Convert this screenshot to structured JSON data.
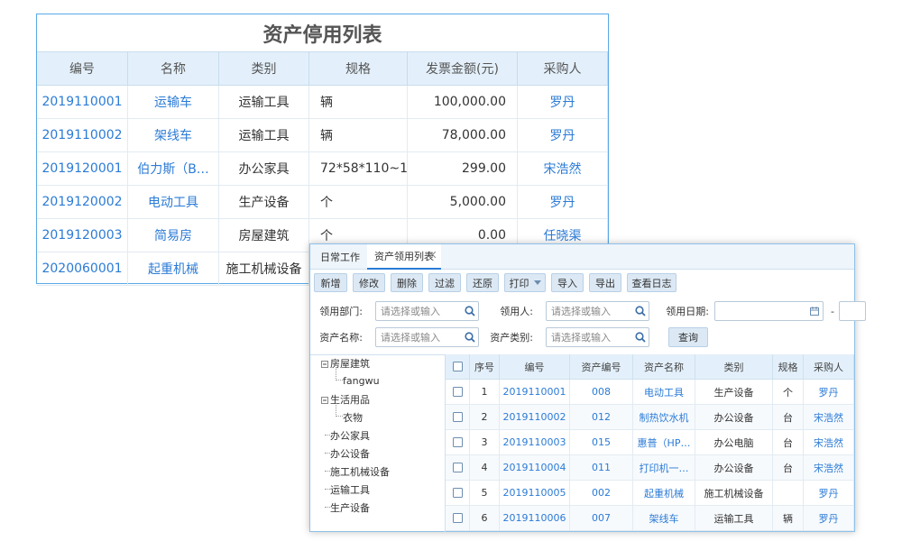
{
  "stop_table": {
    "title": "资产停用列表",
    "columns": [
      "编号",
      "名称",
      "类别",
      "规格",
      "发票金额(元)",
      "采购人"
    ],
    "rows": [
      [
        "2019110001",
        "运输车",
        "运输工具",
        "辆",
        "100,000.00",
        "罗丹"
      ],
      [
        "2019110002",
        "架线车",
        "运输工具",
        "辆",
        "78,000.00",
        "罗丹"
      ],
      [
        "2019120001",
        "伯力斯（B…",
        "办公家具",
        "72*58*110~1…",
        "299.00",
        "宋浩然"
      ],
      [
        "2019120002",
        "电动工具",
        "生产设备",
        "个",
        "5,000.00",
        "罗丹"
      ],
      [
        "2019120003",
        "简易房",
        "房屋建筑",
        "个",
        "0.00",
        "任晓渠"
      ],
      [
        "2020060001",
        "起重机械",
        "施工机械设备"
      ]
    ]
  },
  "window": {
    "tabs": [
      "日常工作",
      "资产领用列表"
    ],
    "toolbar": [
      "新增",
      "修改",
      "删除",
      "过滤",
      "还原",
      "打印",
      "导入",
      "导出",
      "查看日志"
    ],
    "filters": [
      {
        "label": "领用部门:",
        "placeholder": "请选择或输入"
      },
      {
        "label": "领用人:",
        "placeholder": "请选择或输入"
      },
      {
        "label": "资产名称:",
        "placeholder": "请选择或输入"
      },
      {
        "label": "资产类别:",
        "placeholder": "请选择或输入"
      }
    ],
    "date_label": "领用日期:",
    "date_separator": "-",
    "query_button": "查询",
    "tree": [
      {
        "label": "房屋建筑",
        "children": [
          "fangwu"
        ]
      },
      {
        "label": "生活用品",
        "children": [
          "衣物"
        ]
      },
      {
        "label": "办公家具"
      },
      {
        "label": "办公设备"
      },
      {
        "label": "施工机械设备"
      },
      {
        "label": "运输工具"
      },
      {
        "label": "生产设备"
      }
    ],
    "table": {
      "columns": [
        "序号",
        "编号",
        "资产编号",
        "资产名称",
        "类别",
        "规格",
        "采购人"
      ],
      "rows": [
        [
          "1",
          "2019110001",
          "008",
          "电动工具",
          "生产设备",
          "个",
          "罗丹"
        ],
        [
          "2",
          "2019110002",
          "012",
          "制热饮水机",
          "办公设备",
          "台",
          "宋浩然"
        ],
        [
          "3",
          "2019110003",
          "015",
          "惠普（HP…",
          "办公电脑",
          "台",
          "宋浩然"
        ],
        [
          "4",
          "2019110004",
          "011",
          "打印机一…",
          "办公设备",
          "台",
          "宋浩然"
        ],
        [
          "5",
          "2019110005",
          "002",
          "起重机械",
          "施工机械设备",
          null,
          "罗丹"
        ],
        [
          "6",
          "2019110006",
          "007",
          "架线车",
          "运输工具",
          "辆",
          "罗丹"
        ]
      ]
    }
  }
}
